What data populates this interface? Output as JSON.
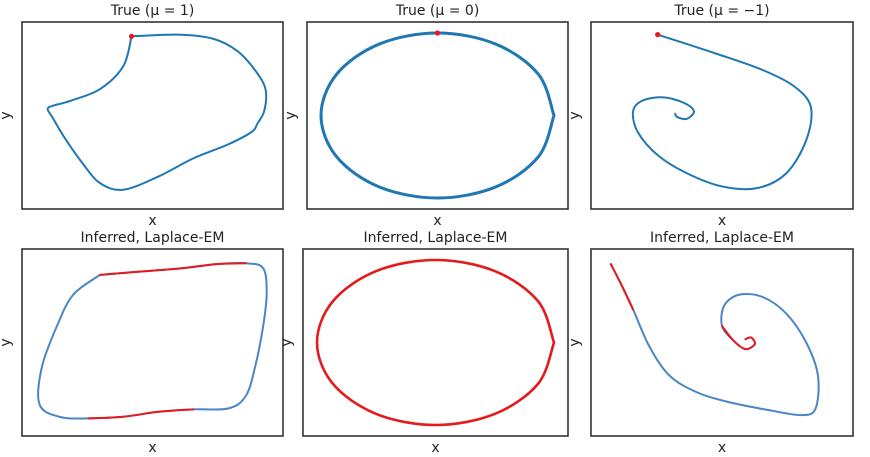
{
  "figure": {
    "colors": {
      "line": "#1f77b4",
      "line_inferred": "#4a86c5",
      "highlight": "#e41a1c",
      "frame": "#333333"
    }
  },
  "chart_data": [
    {
      "type": "line",
      "title": "True (μ = 1)",
      "xlabel": "x",
      "ylabel": "y",
      "grid": false,
      "ticks": false,
      "series": [
        {
          "values": [
            [
              -0.18,
              0.96
            ],
            [
              0.22,
              0.98
            ],
            [
              0.52,
              0.93
            ],
            [
              0.73,
              0.78
            ],
            [
              0.88,
              0.55
            ],
            [
              0.97,
              0.32
            ],
            [
              0.96,
              0.06
            ],
            [
              0.9,
              -0.1
            ],
            [
              0.85,
              -0.2
            ],
            [
              0.65,
              -0.35
            ],
            [
              0.35,
              -0.52
            ],
            [
              0.05,
              -0.74
            ],
            [
              -0.25,
              -0.9
            ],
            [
              -0.45,
              -0.82
            ],
            [
              -0.6,
              -0.58
            ],
            [
              -0.75,
              -0.28
            ],
            [
              -0.86,
              -0.02
            ],
            [
              -0.9,
              0.08
            ],
            [
              -0.85,
              0.12
            ],
            [
              -0.7,
              0.18
            ],
            [
              -0.45,
              0.32
            ],
            [
              -0.25,
              0.6
            ],
            [
              -0.18,
              0.96
            ]
          ]
        }
      ],
      "marker": [
        -0.18,
        0.96
      ]
    },
    {
      "type": "line",
      "title": "True (μ = 0)",
      "xlabel": "x",
      "ylabel": "y",
      "grid": false,
      "ticks": false,
      "series": [
        {
          "values": [
            [
              1,
              0
            ],
            [
              0.866,
              0.5
            ],
            [
              0.5,
              0.866
            ],
            [
              0,
              1
            ],
            [
              -0.5,
              0.866
            ],
            [
              -0.866,
              0.5
            ],
            [
              -1,
              0
            ],
            [
              -0.866,
              -0.5
            ],
            [
              -0.5,
              -0.866
            ],
            [
              0,
              -1
            ],
            [
              0.5,
              -0.866
            ],
            [
              0.866,
              -0.5
            ],
            [
              1,
              0
            ]
          ]
        }
      ],
      "marker": [
        0,
        1
      ]
    },
    {
      "type": "line",
      "title": "True (μ = −1)",
      "xlabel": "x",
      "ylabel": "y",
      "grid": false,
      "ticks": false,
      "series": [
        {
          "values": [
            [
              -0.55,
              0.98
            ],
            [
              -0.05,
              0.75
            ],
            [
              0.35,
              0.55
            ],
            [
              0.62,
              0.35
            ],
            [
              0.76,
              0.1
            ],
            [
              0.72,
              -0.3
            ],
            [
              0.55,
              -0.7
            ],
            [
              0.3,
              -0.88
            ],
            [
              0.0,
              -0.86
            ],
            [
              -0.3,
              -0.7
            ],
            [
              -0.55,
              -0.48
            ],
            [
              -0.72,
              -0.2
            ],
            [
              -0.76,
              0.05
            ],
            [
              -0.68,
              0.18
            ],
            [
              -0.5,
              0.22
            ],
            [
              -0.32,
              0.15
            ],
            [
              -0.24,
              0.05
            ],
            [
              -0.3,
              -0.04
            ],
            [
              -0.38,
              -0.02
            ],
            [
              -0.4,
              0.02
            ]
          ]
        }
      ],
      "marker": [
        -0.55,
        0.98
      ]
    },
    {
      "type": "line",
      "title": "Inferred, Laplace-EM",
      "xlabel": "x",
      "ylabel": "y",
      "grid": false,
      "ticks": false,
      "series": [
        {
          "values": [
            [
              -0.45,
              0.82
            ],
            [
              -0.1,
              0.86
            ],
            [
              0.25,
              0.9
            ],
            [
              0.55,
              0.95
            ],
            [
              0.8,
              0.96
            ],
            [
              0.95,
              0.9
            ],
            [
              0.98,
              0.6
            ],
            [
              0.95,
              0.2
            ],
            [
              0.88,
              -0.3
            ],
            [
              0.8,
              -0.65
            ],
            [
              0.65,
              -0.8
            ],
            [
              0.35,
              -0.81
            ],
            [
              0.05,
              -0.84
            ],
            [
              -0.25,
              -0.9
            ],
            [
              -0.55,
              -0.92
            ],
            [
              -0.8,
              -0.9
            ],
            [
              -0.97,
              -0.75
            ],
            [
              -0.95,
              -0.3
            ],
            [
              -0.82,
              0.2
            ],
            [
              -0.68,
              0.58
            ],
            [
              -0.45,
              0.82
            ]
          ]
        }
      ],
      "highlights": [
        [
          0,
          4
        ],
        [
          11,
          14
        ]
      ]
    },
    {
      "type": "line",
      "title": "Inferred, Laplace-EM",
      "xlabel": "x",
      "ylabel": "y",
      "grid": false,
      "ticks": false,
      "series": [
        {
          "values": [
            [
              1,
              0
            ],
            [
              0.866,
              0.5
            ],
            [
              0.5,
              0.866
            ],
            [
              0,
              1
            ],
            [
              -0.5,
              0.866
            ],
            [
              -0.866,
              0.5
            ],
            [
              -1,
              0
            ],
            [
              -0.866,
              -0.5
            ],
            [
              -0.5,
              -0.866
            ],
            [
              0,
              -1
            ],
            [
              0.5,
              -0.866
            ],
            [
              0.866,
              -0.5
            ],
            [
              1,
              0
            ]
          ]
        }
      ],
      "highlights": [
        [
          0,
          12
        ]
      ]
    },
    {
      "type": "line",
      "title": "Inferred, Laplace-EM",
      "xlabel": "x",
      "ylabel": "y",
      "grid": false,
      "ticks": false,
      "series": [
        {
          "values": [
            [
              -0.95,
              0.95
            ],
            [
              -0.86,
              0.7
            ],
            [
              -0.76,
              0.4
            ],
            [
              -0.62,
              -0.05
            ],
            [
              -0.45,
              -0.4
            ],
            [
              -0.22,
              -0.6
            ],
            [
              0.05,
              -0.72
            ],
            [
              0.4,
              -0.82
            ],
            [
              0.68,
              -0.88
            ],
            [
              0.8,
              -0.8
            ],
            [
              0.82,
              -0.4
            ],
            [
              0.72,
              0.0
            ],
            [
              0.55,
              0.35
            ],
            [
              0.35,
              0.55
            ],
            [
              0.15,
              0.58
            ],
            [
              0.02,
              0.45
            ],
            [
              0.0,
              0.2
            ],
            [
              0.1,
              0.02
            ],
            [
              0.2,
              -0.08
            ],
            [
              0.28,
              -0.02
            ],
            [
              0.25,
              0.06
            ],
            [
              0.2,
              0.04
            ]
          ]
        }
      ],
      "highlights": [
        [
          0,
          2
        ],
        [
          16,
          21
        ]
      ]
    }
  ]
}
